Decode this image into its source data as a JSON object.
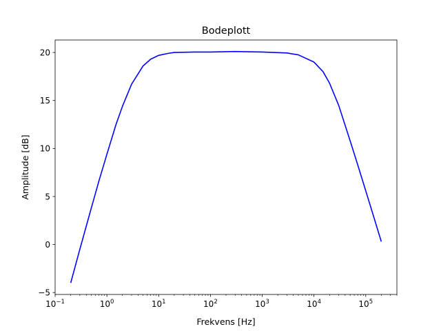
{
  "chart_data": {
    "type": "line",
    "title": "Bodeplott",
    "xlabel": "Frekvens [Hz]",
    "ylabel": "Amplitude [dB]",
    "x_scale": "log",
    "xlim": [
      0.1,
      400000
    ],
    "ylim": [
      -5.2,
      21.3
    ],
    "grid": false,
    "legend": "none",
    "x_ticks": [
      {
        "value": 0.1,
        "base": "10",
        "exp": "−1"
      },
      {
        "value": 1,
        "base": "10",
        "exp": "0"
      },
      {
        "value": 10,
        "base": "10",
        "exp": "1"
      },
      {
        "value": 100,
        "base": "10",
        "exp": "2"
      },
      {
        "value": 1000,
        "base": "10",
        "exp": "3"
      },
      {
        "value": 10000,
        "base": "10",
        "exp": "4"
      },
      {
        "value": 100000,
        "base": "10",
        "exp": "5"
      }
    ],
    "y_ticks": [
      {
        "value": -5,
        "label": "−5"
      },
      {
        "value": 0,
        "label": "0"
      },
      {
        "value": 5,
        "label": "5"
      },
      {
        "value": 10,
        "label": "10"
      },
      {
        "value": 15,
        "label": "15"
      },
      {
        "value": 20,
        "label": "20"
      }
    ],
    "series": [
      {
        "color": "#0000ff",
        "points": [
          [
            0.2,
            -4.0
          ],
          [
            0.3,
            -0.5
          ],
          [
            0.5,
            3.8
          ],
          [
            0.7,
            6.6
          ],
          [
            1,
            9.4
          ],
          [
            1.5,
            12.5
          ],
          [
            2,
            14.4
          ],
          [
            3,
            16.7
          ],
          [
            5,
            18.6
          ],
          [
            7,
            19.3
          ],
          [
            10,
            19.7
          ],
          [
            15,
            19.9
          ],
          [
            20,
            20.0
          ],
          [
            50,
            20.05
          ],
          [
            100,
            20.05
          ],
          [
            300,
            20.1
          ],
          [
            1000,
            20.05
          ],
          [
            3000,
            19.95
          ],
          [
            5000,
            19.75
          ],
          [
            10000,
            19.0
          ],
          [
            15000,
            18.0
          ],
          [
            20000,
            16.8
          ],
          [
            30000,
            14.5
          ],
          [
            50000,
            10.8
          ],
          [
            70000,
            8.3
          ],
          [
            100000,
            5.6
          ],
          [
            150000,
            2.5
          ],
          [
            200000,
            0.3
          ]
        ]
      }
    ]
  }
}
